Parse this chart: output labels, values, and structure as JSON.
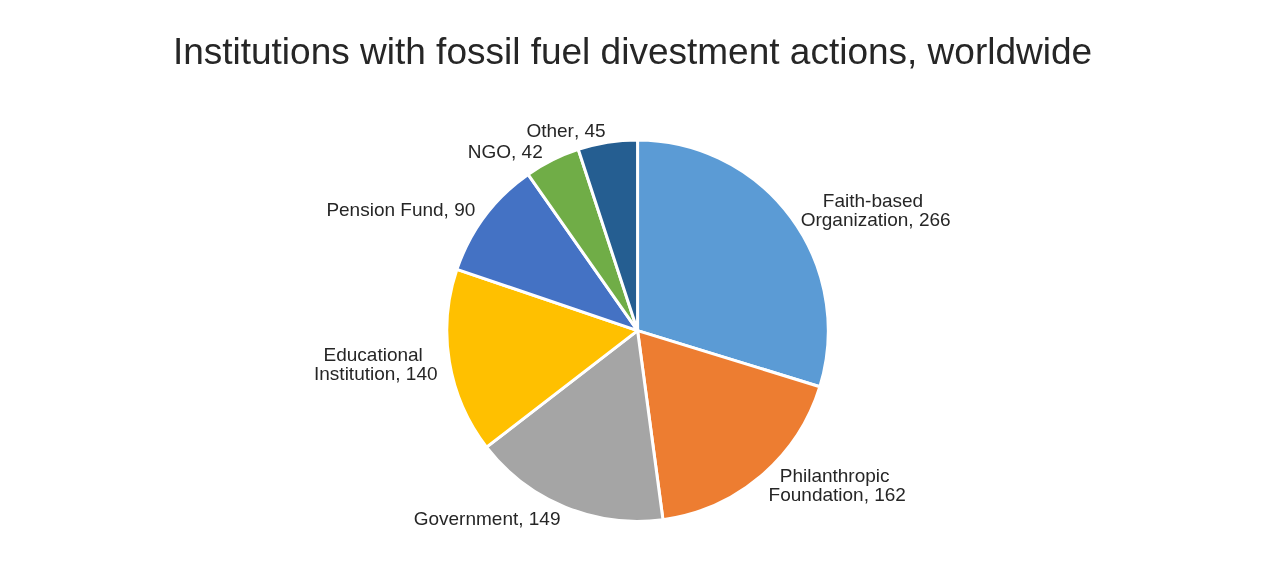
{
  "chart_data": {
    "type": "pie",
    "title": "Institutions with fossil fuel divestment actions, worldwide",
    "categories": [
      "Faith-based Organization",
      "Philanthropic Foundation",
      "Government",
      "Educational Institution",
      "Pension Fund",
      "NGO",
      "Other"
    ],
    "values": [
      266,
      162,
      149,
      140,
      90,
      42,
      45
    ],
    "colors": [
      "#5b9bd5",
      "#ed7d31",
      "#a5a5a5",
      "#ffc000",
      "#4472c4",
      "#70ad47",
      "#255e91"
    ],
    "value_labels": [
      ", 266",
      ", 162",
      ", 149",
      ", 140",
      ", 90",
      ", 42",
      ", 45"
    ],
    "legend": false
  }
}
